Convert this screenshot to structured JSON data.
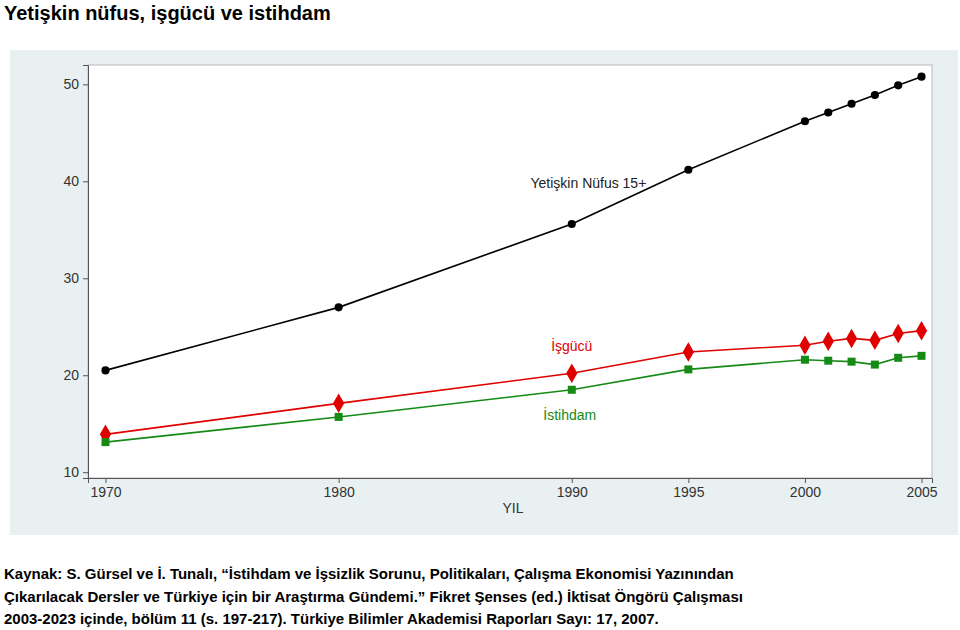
{
  "chart_data": {
    "type": "line",
    "title": "Yetişkin nüfus, işgücü ve istihdam",
    "x_label": "YIL",
    "x": [
      1970,
      1980,
      1990,
      1995,
      2000,
      2001,
      2002,
      2003,
      2004,
      2005
    ],
    "series": [
      {
        "name": "Yetişkin Nüfus 15+",
        "color": "#000000",
        "marker": "circle",
        "values": [
          20.5,
          27.0,
          35.6,
          41.2,
          46.2,
          47.1,
          48.0,
          48.9,
          49.9,
          50.8
        ]
      },
      {
        "name": "İşgücü",
        "color": "#e00000",
        "marker": "diamond",
        "values": [
          13.9,
          17.1,
          20.2,
          22.4,
          23.1,
          23.5,
          23.8,
          23.6,
          24.3,
          24.6
        ]
      },
      {
        "name": "İstihdam",
        "color": "#158a15",
        "marker": "square",
        "values": [
          13.1,
          15.7,
          18.5,
          20.6,
          21.6,
          21.5,
          21.4,
          21.1,
          21.8,
          22.0
        ]
      }
    ],
    "xlim": [
      1969.25,
      2005.45
    ],
    "xticks": [
      1970,
      1980,
      1990,
      1995,
      2000,
      2005
    ],
    "ylim": [
      9.4,
      52
    ],
    "yticks": [
      10,
      20,
      30,
      40,
      50
    ],
    "grid": false,
    "source": [
      "Kaynak:  S. Gürsel ve İ. Tunalı, “İstihdam ve İşsizlik Sorunu, Politikaları, Çalışma Ekonomisi Yazınından",
      "Çıkarılacak Dersler ve Türkiye için bir Araştırma Gündemi.”  Fikret Şenses (ed.) İktisat Öngörü Çalışması",
      "2003-2023 içinde, bölüm 11 (s. 197-217).  Türkiye Bilimler Akademisi Raporları Sayı: 17, 2007."
    ]
  }
}
